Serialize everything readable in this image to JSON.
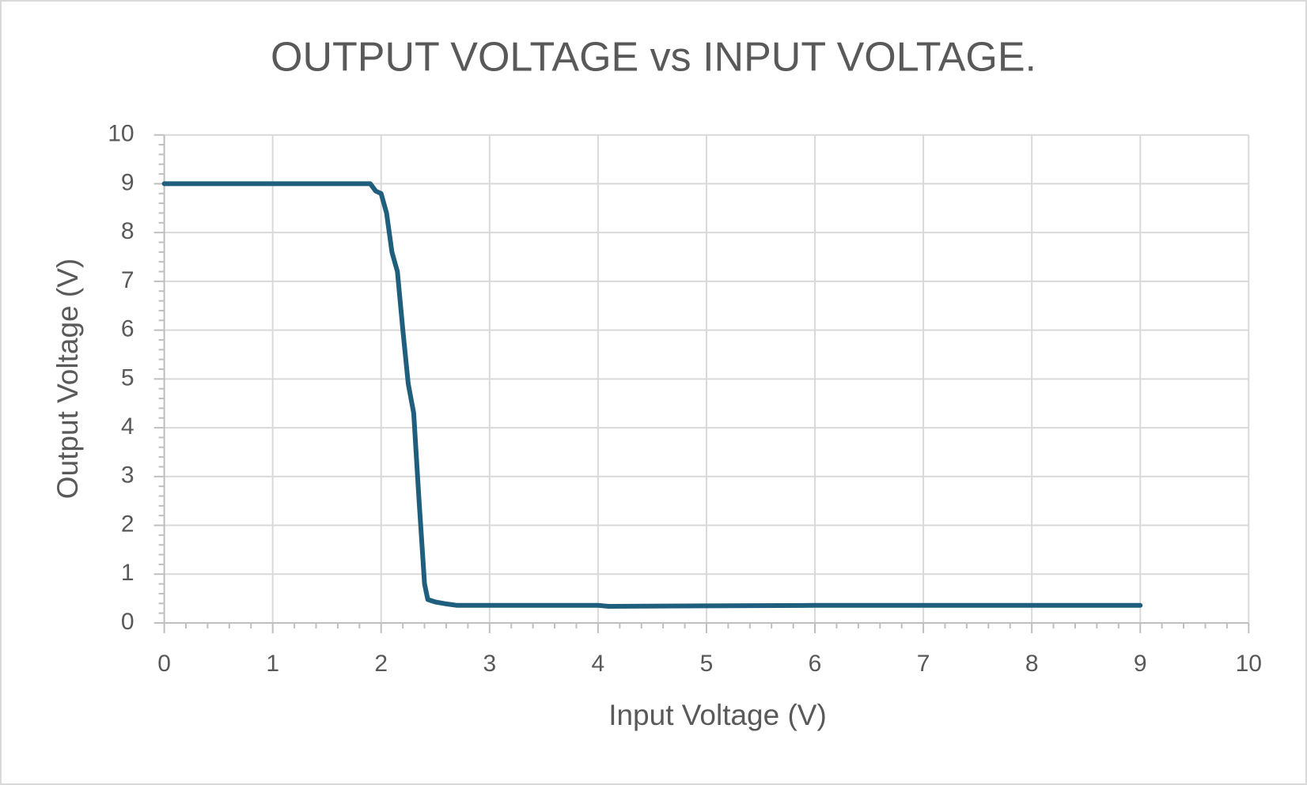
{
  "chart_data": {
    "type": "line",
    "title": "OUTPUT VOLTAGE vs INPUT VOLTAGE.",
    "x_label": "Input Voltage (V)",
    "y_label": "Output Voltage (V)",
    "x": [
      0,
      0.5,
      1,
      1.5,
      1.9,
      1.95,
      2.0,
      2.05,
      2.1,
      2.15,
      2.2,
      2.25,
      2.3,
      2.35,
      2.4,
      2.43,
      2.5,
      2.6,
      2.7,
      3,
      4,
      4.1,
      5,
      6,
      7,
      8,
      9
    ],
    "values": [
      9,
      9,
      9,
      9,
      9,
      8.85,
      8.8,
      8.4,
      7.6,
      7.2,
      6,
      4.9,
      4.3,
      2.5,
      0.8,
      0.48,
      0.43,
      0.39,
      0.36,
      0.36,
      0.36,
      0.34,
      0.35,
      0.36,
      0.36,
      0.36,
      0.36
    ],
    "color": "#1f5e7c",
    "xlim": [
      0,
      10
    ],
    "ylim": [
      0,
      10
    ],
    "xticks": [
      0,
      1,
      2,
      3,
      4,
      5,
      6,
      7,
      8,
      9,
      10
    ],
    "yticks": [
      0,
      1,
      2,
      3,
      4,
      5,
      6,
      7,
      8,
      9,
      10
    ],
    "grid": true
  }
}
